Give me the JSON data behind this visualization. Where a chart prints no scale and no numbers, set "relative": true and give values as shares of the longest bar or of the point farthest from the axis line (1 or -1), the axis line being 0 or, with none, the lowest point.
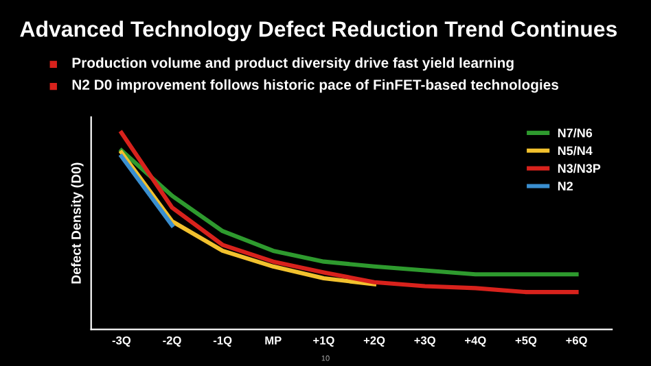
{
  "chart_data": {
    "type": "line",
    "title": "Advanced Technology Defect Reduction Trend Continues",
    "annotations": [
      "Production volume and product diversity drive fast yield learning",
      "N2 D0 improvement follows historic pace of FinFET-based technologies",
      "10"
    ],
    "ylabel": "Defect Density (D0)",
    "relative": true,
    "categories": [
      "-3Q",
      "-2Q",
      "-1Q",
      "MP",
      "+1Q",
      "+2Q",
      "+3Q",
      "+4Q",
      "+5Q",
      "+6Q"
    ],
    "series": [
      {
        "name": "N7/N6",
        "color": "#2e9a2e",
        "values": [
          0.91,
          0.68,
          0.5,
          0.4,
          0.345,
          0.32,
          0.3,
          0.28,
          0.28,
          0.28
        ]
      },
      {
        "name": "N5/N4",
        "color": "#f2c12e",
        "values": [
          0.9,
          0.55,
          0.4,
          0.32,
          0.26,
          0.23,
          null,
          null,
          null,
          null
        ]
      },
      {
        "name": "N3/N3P",
        "color": "#d8221c",
        "values": [
          1.0,
          0.62,
          0.43,
          0.345,
          0.29,
          0.24,
          0.22,
          0.21,
          0.19,
          0.19
        ]
      },
      {
        "name": "N2",
        "color": "#3a8fd0",
        "values": [
          0.88,
          0.53,
          null,
          null,
          null,
          null,
          null,
          null,
          null,
          null
        ]
      }
    ],
    "legend": "top right",
    "grid": false,
    "marker": "none",
    "line_style": "solid"
  }
}
